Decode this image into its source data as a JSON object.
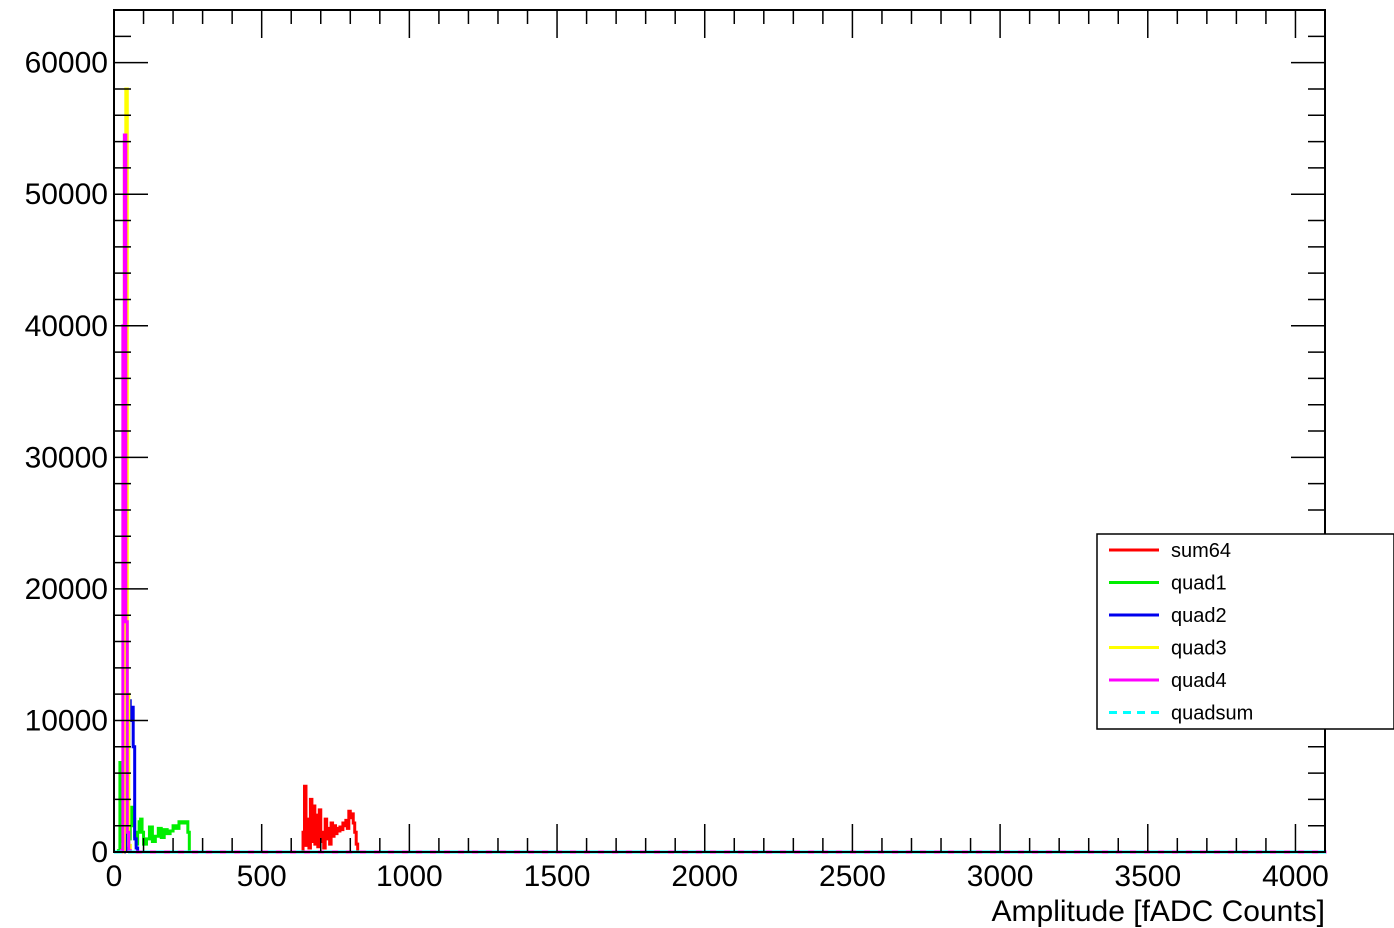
{
  "chart_data": {
    "type": "line",
    "title": "",
    "xlabel": "Amplitude [fADC Counts]",
    "ylabel": "",
    "xlim": [
      0,
      4100
    ],
    "ylim": [
      0,
      64000
    ],
    "x_ticks": [
      0,
      500,
      1000,
      1500,
      2000,
      2500,
      3000,
      3500,
      4000
    ],
    "y_ticks": [
      0,
      10000,
      20000,
      30000,
      40000,
      50000,
      60000
    ],
    "x_tick_labels": [
      "0",
      "500",
      "1000",
      "1500",
      "2000",
      "2500",
      "3000",
      "3500",
      "4000"
    ],
    "y_tick_labels": [
      "0",
      "10000",
      "20000",
      "30000",
      "40000",
      "50000",
      "60000"
    ],
    "grid": false,
    "legend_position": "right",
    "series": [
      {
        "name": "sum64",
        "color": "#ff0000",
        "dashed": false,
        "x": [
          630,
          640,
          645,
          650,
          655,
          660,
          665,
          670,
          675,
          680,
          685,
          690,
          695,
          700,
          705,
          710,
          715,
          720,
          725,
          730,
          735,
          740,
          745,
          750,
          755,
          760,
          765,
          770,
          775,
          780,
          785,
          790,
          795,
          800,
          805,
          810,
          815,
          820,
          825,
          830,
          4100
        ],
        "y": [
          0,
          1500,
          5000,
          500,
          2500,
          300,
          4000,
          800,
          3500,
          600,
          2800,
          400,
          3200,
          800,
          1500,
          300,
          2500,
          1000,
          1800,
          600,
          2200,
          1200,
          2000,
          1400,
          1800,
          1600,
          1900,
          1700,
          2200,
          2000,
          2400,
          1800,
          3100,
          2600,
          2900,
          2200,
          1500,
          600,
          0,
          0,
          0
        ]
      },
      {
        "name": "quad1",
        "color": "#00ee00",
        "dashed": false,
        "x": [
          0,
          15,
          20,
          25,
          30,
          35,
          40,
          45,
          50,
          55,
          60,
          65,
          70,
          75,
          80,
          85,
          90,
          95,
          100,
          110,
          120,
          130,
          140,
          150,
          160,
          170,
          180,
          190,
          200,
          210,
          220,
          230,
          240,
          250,
          255,
          4100
        ],
        "y": [
          0,
          100,
          6800,
          4500,
          800,
          400,
          200,
          400,
          1000,
          2000,
          3400,
          2500,
          1200,
          600,
          1500,
          2300,
          2500,
          1500,
          600,
          1000,
          1900,
          800,
          1200,
          1800,
          1100,
          1700,
          1400,
          1600,
          2000,
          1800,
          2300,
          2200,
          2300,
          1500,
          0,
          0
        ]
      },
      {
        "name": "quad2",
        "color": "#0000ee",
        "dashed": false,
        "x": [
          0,
          35,
          40,
          45,
          50,
          55,
          60,
          65,
          70,
          75,
          80,
          85,
          90,
          4100
        ],
        "y": [
          0,
          100,
          2000,
          8000,
          11500,
          10000,
          11000,
          8000,
          1000,
          300,
          0,
          0,
          0,
          0
        ]
      },
      {
        "name": "quad3",
        "color": "#ffff00",
        "dashed": false,
        "x": [
          0,
          30,
          35,
          40,
          45,
          50,
          55,
          4100
        ],
        "y": [
          0,
          100,
          54000,
          58000,
          12000,
          500,
          0,
          0
        ]
      },
      {
        "name": "quad4",
        "color": "#ff00ff",
        "dashed": false,
        "x": [
          0,
          25,
          30,
          35,
          40,
          45,
          50,
          55,
          4100
        ],
        "y": [
          0,
          100,
          40000,
          54500,
          17500,
          1500,
          100,
          0,
          0
        ]
      },
      {
        "name": "quadsum",
        "color": "#00ffff",
        "dashed": true,
        "x": [
          0,
          4100
        ],
        "y": [
          0,
          0
        ]
      }
    ]
  }
}
